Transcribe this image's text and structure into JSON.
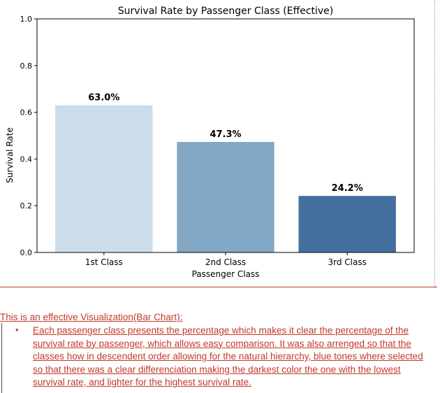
{
  "chart_data": {
    "type": "bar",
    "title": "Survival Rate by Passenger Class (Effective)",
    "xlabel": "Passenger Class",
    "ylabel": "Survival Rate",
    "categories": [
      "1st Class",
      "2nd Class",
      "3rd Class"
    ],
    "values": [
      0.63,
      0.473,
      0.242
    ],
    "data_labels": [
      "63.0%",
      "47.3%",
      "24.2%"
    ],
    "colors": [
      "#cddceb",
      "#82a8c6",
      "#436f9f"
    ],
    "ylim": [
      0,
      1.0
    ],
    "yticks": [
      "0.0",
      "0.2",
      "0.4",
      "0.6",
      "0.8",
      "1.0"
    ],
    "grid": false,
    "legend": "none"
  },
  "note": {
    "heading": "This is an effective Visualization(Bar Chart):",
    "bullet_symbol": "•",
    "bullet_text": "Each passenger class presents the percentage which makes it clear the percentage of the survival rate by passenger, which allows easy comparison. It was also arrenged so that the classes how in descendent order allowing for the natural hierarchy, blue tones where selected so that there was a clear differenciation making the darkest color the one with the lowest survival rate, and lighter for the highest survival rate."
  }
}
